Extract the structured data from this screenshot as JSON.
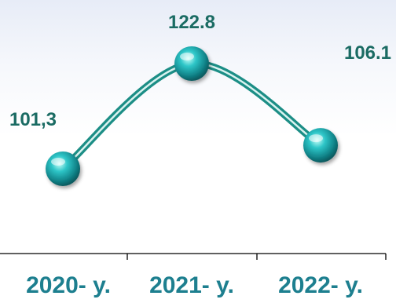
{
  "chart_data": {
    "type": "line",
    "categories": [
      "2020- y.",
      "2021- y.",
      "2022- y."
    ],
    "values": [
      101.3,
      122.8,
      106.1
    ],
    "data_labels": [
      "101,3",
      "122.8",
      "106.1"
    ],
    "title": "",
    "xlabel": "",
    "ylabel": "",
    "ylim": [
      80,
      130
    ],
    "grid": false,
    "legend": "none",
    "colors": {
      "line": "#1c8e86",
      "line_highlight": "#d9f3f0",
      "marker_center": "#c8fff9",
      "marker_mid": "#1fb1b5",
      "marker_edge": "#0b5b60",
      "label": "#1a6b63",
      "tick_label": "#1d7f8f",
      "axis": "#000000"
    }
  }
}
